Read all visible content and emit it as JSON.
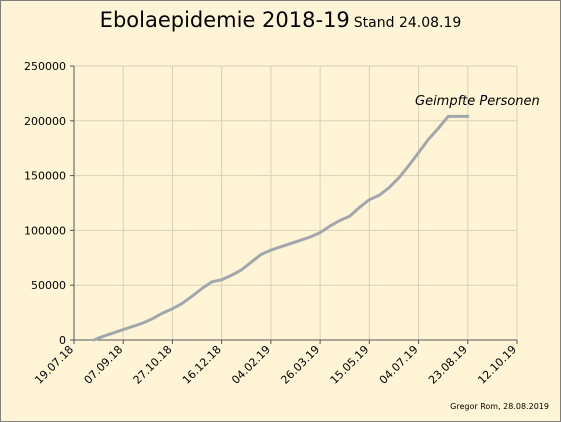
{
  "chart_data": {
    "type": "line",
    "title": "Ebolaepidemie 2018-19",
    "subtitle": "Stand 24.08.19",
    "credit": "Gregor Rom, 28.08.2019",
    "xlabel": "",
    "ylabel": "",
    "grid": true,
    "legend": "none",
    "xlim": [
      "2018-07-19",
      "2019-10-12"
    ],
    "ylim": [
      0,
      250000
    ],
    "x_ticks": [
      "19.07.18",
      "07.09.18",
      "27.10.18",
      "16.12.18",
      "04.02.19",
      "26.03.19",
      "15.05.19",
      "04.07.19",
      "23.08.19",
      "12.10.19"
    ],
    "y_ticks": [
      "0",
      "50000",
      "100000",
      "150000",
      "200000",
      "250000"
    ],
    "annotation": "Geimpfte Personen",
    "colors": {
      "line": "#a0a8ae",
      "grid": "#d9d0b8",
      "background": "#fff5d6"
    },
    "series": [
      {
        "x": [
          "2018-08-08",
          "2018-08-18",
          "2018-08-28",
          "2018-09-07",
          "2018-09-17",
          "2018-09-27",
          "2018-10-07",
          "2018-10-17",
          "2018-10-27",
          "2018-11-06",
          "2018-11-16",
          "2018-11-26",
          "2018-12-06",
          "2018-12-16",
          "2018-12-26",
          "2019-01-05",
          "2019-01-15",
          "2019-01-25",
          "2019-02-04",
          "2019-02-14",
          "2019-02-24",
          "2019-03-06",
          "2019-03-16",
          "2019-03-26",
          "2019-04-05",
          "2019-04-15",
          "2019-04-25",
          "2019-05-05",
          "2019-05-15",
          "2019-05-25",
          "2019-06-04",
          "2019-06-14",
          "2019-06-24",
          "2019-07-04",
          "2019-07-14",
          "2019-07-24",
          "2019-08-03",
          "2019-08-13",
          "2019-08-23"
        ],
        "values": [
          0,
          3500,
          6500,
          9500,
          12500,
          15500,
          19500,
          24500,
          28500,
          33500,
          40000,
          47000,
          53000,
          55000,
          59000,
          64000,
          71000,
          78000,
          82000,
          85000,
          88000,
          91000,
          94000,
          98000,
          104000,
          109000,
          113000,
          121000,
          128000,
          132000,
          139000,
          148000,
          159000,
          171000,
          183000,
          193000,
          204000,
          204000,
          204000
        ]
      }
    ]
  }
}
